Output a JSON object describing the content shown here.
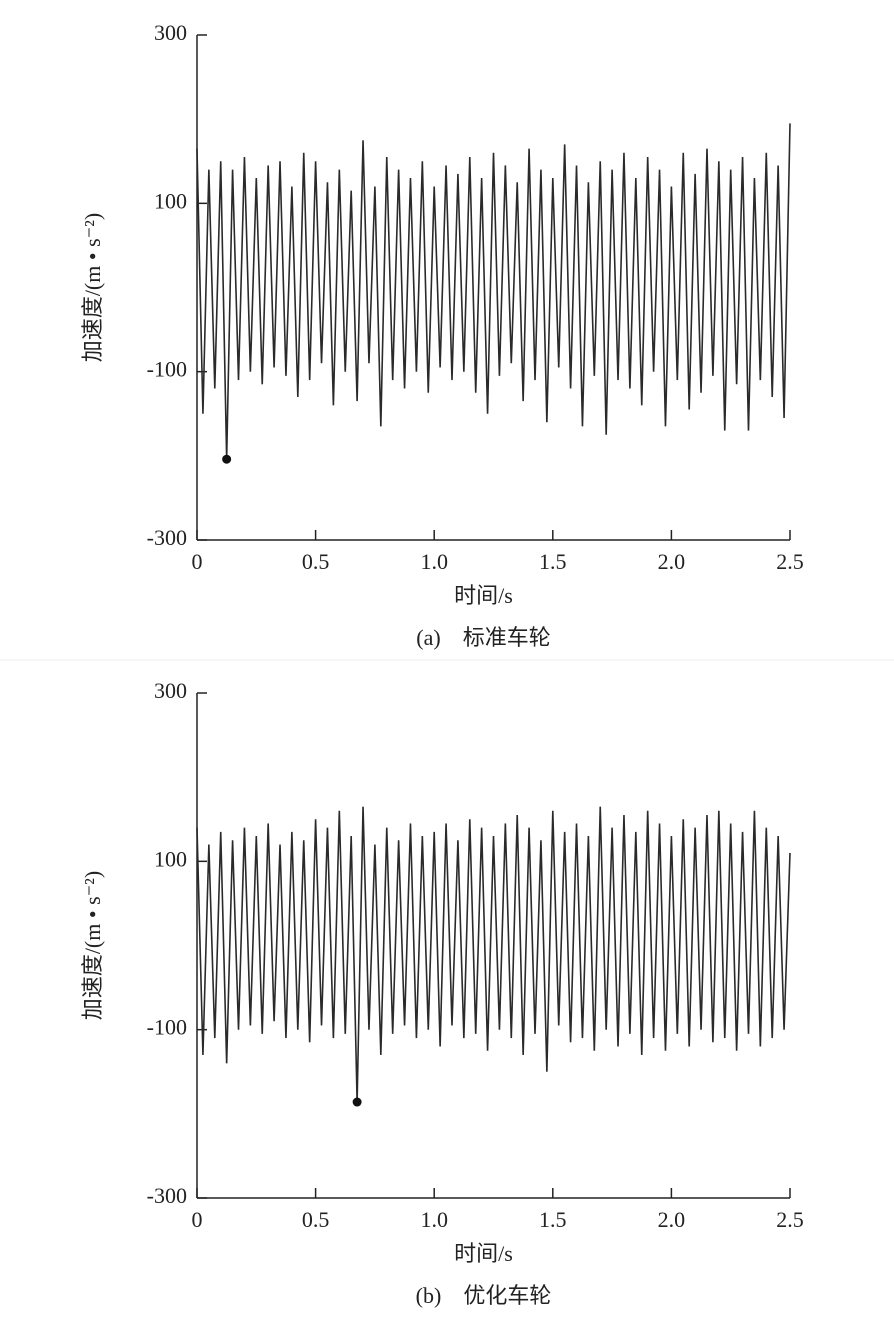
{
  "chart_data": [
    {
      "type": "line",
      "xlabel": "时间/s",
      "ylabel": "加速度/(m • s⁻²)",
      "caption": "(a)　标准车轮",
      "xlim": [
        0,
        2.5
      ],
      "ylim": [
        -300,
        300
      ],
      "xticks": [
        0,
        0.5,
        {
          "value": 1,
          "label": "1.0"
        },
        1.5,
        {
          "value": 2,
          "label": "2.0"
        },
        2.5
      ],
      "yticks": [
        -300,
        -100,
        100,
        300
      ],
      "x": [
        0,
        0.025,
        0.05,
        0.075,
        0.1,
        0.125,
        0.15,
        0.175,
        0.2,
        0.225,
        0.25,
        0.275,
        0.3,
        0.325,
        0.35,
        0.375,
        0.4,
        0.425,
        0.45,
        0.475,
        0.5,
        0.525,
        0.55,
        0.575,
        0.6,
        0.625,
        0.65,
        0.675,
        0.7,
        0.725,
        0.75,
        0.775,
        0.8,
        0.825,
        0.85,
        0.875,
        0.9,
        0.925,
        0.95,
        0.975,
        1,
        1.025,
        1.05,
        1.075,
        1.1,
        1.125,
        1.15,
        1.175,
        1.2,
        1.225,
        1.25,
        1.275,
        1.3,
        1.325,
        1.35,
        1.375,
        1.4,
        1.425,
        1.45,
        1.475,
        1.5,
        1.525,
        1.55,
        1.575,
        1.6,
        1.625,
        1.65,
        1.675,
        1.7,
        1.725,
        1.75,
        1.775,
        1.8,
        1.825,
        1.85,
        1.875,
        1.9,
        1.925,
        1.95,
        1.975,
        2,
        2.025,
        2.05,
        2.075,
        2.1,
        2.125,
        2.15,
        2.175,
        2.2,
        2.225,
        2.25,
        2.275,
        2.3,
        2.325,
        2.35,
        2.375,
        2.4,
        2.425,
        2.45,
        2.475,
        2.5
      ],
      "series": [
        {
          "color": "#2a2a2a",
          "values": [
            165,
            -150,
            140,
            -120,
            150,
            -204,
            140,
            -110,
            155,
            -100,
            130,
            -115,
            145,
            -95,
            150,
            -105,
            120,
            -130,
            160,
            -110,
            150,
            -90,
            125,
            -140,
            140,
            -100,
            115,
            -135,
            175,
            -90,
            120,
            -165,
            155,
            -110,
            140,
            -120,
            130,
            -100,
            150,
            -125,
            120,
            -95,
            145,
            -110,
            135,
            -100,
            155,
            -125,
            130,
            -150,
            160,
            -105,
            145,
            -90,
            125,
            -135,
            165,
            -110,
            140,
            -160,
            130,
            -95,
            170,
            -120,
            145,
            -165,
            125,
            -105,
            150,
            -175,
            140,
            -110,
            160,
            -120,
            130,
            -140,
            155,
            -100,
            140,
            -165,
            120,
            -110,
            160,
            -145,
            135,
            -125,
            165,
            -105,
            150,
            -170,
            140,
            -115,
            155,
            -170,
            130,
            -110,
            160,
            -130,
            145,
            -155,
            195
          ]
        }
      ],
      "marker": {
        "x": 0.125,
        "y": -204
      }
    },
    {
      "type": "line",
      "xlabel": "时间/s",
      "ylabel": "加速度/(m • s⁻²)",
      "caption": "(b)　优化车轮",
      "xlim": [
        0,
        2.5
      ],
      "ylim": [
        -300,
        300
      ],
      "xticks": [
        0,
        0.5,
        {
          "value": 1,
          "label": "1.0"
        },
        1.5,
        {
          "value": 2,
          "label": "2.0"
        },
        2.5
      ],
      "yticks": [
        -300,
        -100,
        100,
        300
      ],
      "x": [
        0,
        0.025,
        0.05,
        0.075,
        0.1,
        0.125,
        0.15,
        0.175,
        0.2,
        0.225,
        0.25,
        0.275,
        0.3,
        0.325,
        0.35,
        0.375,
        0.4,
        0.425,
        0.45,
        0.475,
        0.5,
        0.525,
        0.55,
        0.575,
        0.6,
        0.625,
        0.65,
        0.675,
        0.7,
        0.725,
        0.75,
        0.775,
        0.8,
        0.825,
        0.85,
        0.875,
        0.9,
        0.925,
        0.95,
        0.975,
        1,
        1.025,
        1.05,
        1.075,
        1.1,
        1.125,
        1.15,
        1.175,
        1.2,
        1.225,
        1.25,
        1.275,
        1.3,
        1.325,
        1.35,
        1.375,
        1.4,
        1.425,
        1.45,
        1.475,
        1.5,
        1.525,
        1.55,
        1.575,
        1.6,
        1.625,
        1.65,
        1.675,
        1.7,
        1.725,
        1.75,
        1.775,
        1.8,
        1.825,
        1.85,
        1.875,
        1.9,
        1.925,
        1.95,
        1.975,
        2,
        2.025,
        2.05,
        2.075,
        2.1,
        2.125,
        2.15,
        2.175,
        2.2,
        2.225,
        2.25,
        2.275,
        2.3,
        2.325,
        2.35,
        2.375,
        2.4,
        2.425,
        2.45,
        2.475,
        2.5
      ],
      "series": [
        {
          "color": "#2a2a2a",
          "values": [
            140,
            -130,
            120,
            -110,
            135,
            -140,
            125,
            -100,
            140,
            -95,
            130,
            -105,
            145,
            -90,
            120,
            -110,
            135,
            -100,
            125,
            -115,
            150,
            -95,
            140,
            -110,
            160,
            -105,
            130,
            -186,
            165,
            -100,
            120,
            -130,
            140,
            -105,
            125,
            -95,
            145,
            -110,
            130,
            -100,
            135,
            -120,
            145,
            -95,
            125,
            -110,
            150,
            -105,
            140,
            -125,
            130,
            -100,
            145,
            -110,
            155,
            -130,
            140,
            -105,
            125,
            -150,
            160,
            -95,
            135,
            -115,
            145,
            -110,
            130,
            -125,
            165,
            -100,
            140,
            -120,
            155,
            -105,
            135,
            -130,
            160,
            -110,
            145,
            -125,
            130,
            -105,
            150,
            -120,
            140,
            -100,
            155,
            -115,
            160,
            -110,
            145,
            -125,
            135,
            -105,
            160,
            -120,
            140,
            -110,
            130,
            -100,
            110
          ]
        }
      ],
      "marker": {
        "x": 0.675,
        "y": -186
      }
    }
  ]
}
